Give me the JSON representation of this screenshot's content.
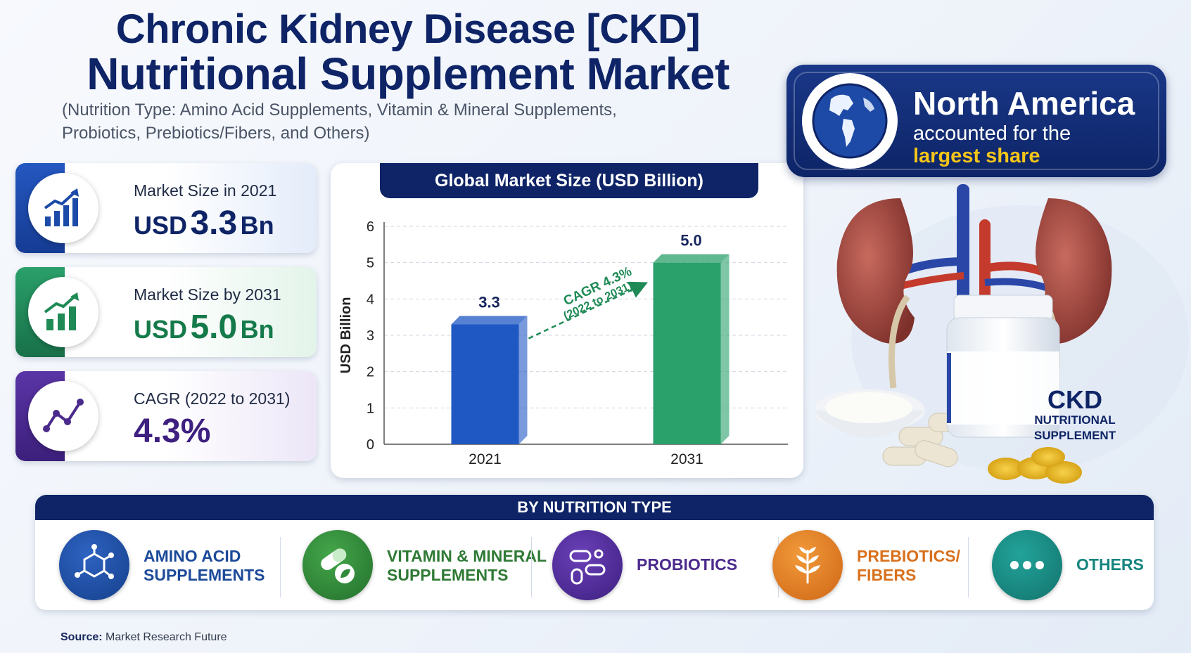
{
  "title": {
    "line1": "Chronic Kidney Disease [CKD]",
    "line2": "Nutritional Supplement Market",
    "subtitle_line1": "(Nutrition Type: Amino Acid Supplements, Vitamin & Mineral Supplements,",
    "subtitle_line2": "Probiotics, Prebiotics/Fibers, and Others)"
  },
  "stats": [
    {
      "label": "Market Size in 2021",
      "unit_prefix": "USD",
      "number": "3.3",
      "unit_suffix": "Bn",
      "icon": "bar-chart-up-icon",
      "color": "#1c4aa8"
    },
    {
      "label": "Market Size by 2031",
      "unit_prefix": "USD",
      "number": "5.0",
      "unit_suffix": "Bn",
      "icon": "bar-chart-up-icon",
      "color": "#1f8a55"
    },
    {
      "label": "CAGR (2022 to 2031)",
      "number": "4.3%",
      "icon": "line-trend-icon",
      "color": "#4b2a8c"
    }
  ],
  "chart_data": {
    "type": "bar",
    "title": "Global Market Size (USD Billion)",
    "categories": [
      "2021",
      "2031"
    ],
    "values": [
      3.3,
      5.0
    ],
    "value_labels": [
      "3.3",
      "5.0"
    ],
    "ylabel": "USD Billion",
    "xlabel": "",
    "ylim": [
      0,
      6
    ],
    "yticks": [
      "0",
      "1",
      "2",
      "3",
      "4",
      "5",
      "6"
    ],
    "bar_colors": [
      "#1f57c3",
      "#2aa06a"
    ],
    "grid": true,
    "annotation": {
      "line1": "CAGR 4.3%",
      "line2": "(2022 to 2031)"
    }
  },
  "region": {
    "line1": "North America",
    "line2": "accounted for the",
    "line3": "largest share",
    "icon": "globe-icon"
  },
  "bottle": {
    "line1": "CKD",
    "line2": "NUTRITIONAL",
    "line3": "SUPPLEMENT"
  },
  "types": {
    "header": "BY NUTRITION TYPE",
    "items": [
      {
        "line1": "AMINO ACID",
        "line2": "SUPPLEMENTS",
        "icon": "molecule-icon",
        "color": "#1c4a99"
      },
      {
        "line1": "VITAMIN & MINERAL",
        "line2": "SUPPLEMENTS",
        "icon": "capsule-leaf-icon",
        "color": "#2f8a3a"
      },
      {
        "line1": "PROBIOTICS",
        "line2": "",
        "icon": "bacteria-icon",
        "color": "#4b2a8c"
      },
      {
        "line1": "PREBIOTICS/",
        "line2": "FIBERS",
        "icon": "wheat-icon",
        "color": "#e07820"
      },
      {
        "line1": "OTHERS",
        "line2": "",
        "icon": "dots-icon",
        "color": "#16857e"
      }
    ]
  },
  "source": {
    "label": "Source:",
    "text": "Market Research Future"
  }
}
